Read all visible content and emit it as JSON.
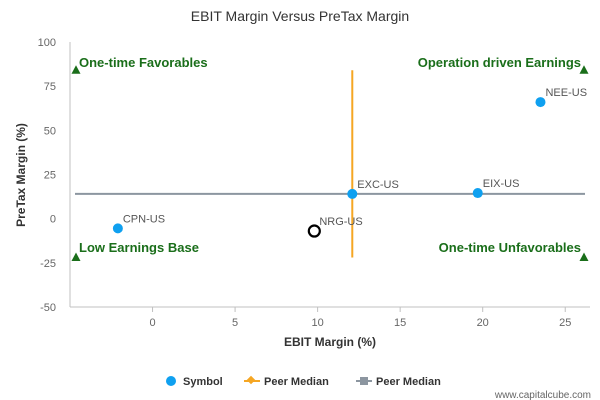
{
  "chart_data": {
    "type": "scatter",
    "title": "EBIT Margin Versus PreTax Margin",
    "xlabel": "EBIT Margin (%)",
    "ylabel": "PreTax Margin (%)",
    "xlim": [
      -5.0,
      26.5
    ],
    "ylim": [
      -50,
      100
    ],
    "x_ticks": [
      0,
      5,
      10,
      15,
      20,
      25
    ],
    "y_ticks": [
      100,
      75,
      50,
      25,
      0,
      -25,
      -50
    ],
    "points": [
      {
        "label": "NEE-US",
        "x": 23.5,
        "y": 66,
        "style": "filled"
      },
      {
        "label": "EXC-US",
        "x": 12.1,
        "y": 14,
        "style": "filled"
      },
      {
        "label": "EIX-US",
        "x": 19.7,
        "y": 14.5,
        "style": "filled"
      },
      {
        "label": "CPN-US",
        "x": -2.1,
        "y": -5.5,
        "style": "filled"
      },
      {
        "label": "NRG-US",
        "x": 9.8,
        "y": -7,
        "style": "hollow"
      }
    ],
    "peer_median_x": 12.1,
    "peer_median_y": 14,
    "median_line_x_range": [
      -22,
      84
    ],
    "quadrant_labels": {
      "top_left": "One-time Favorables",
      "top_right": "Operation driven Earnings",
      "bottom_left": "Low Earnings Base",
      "bottom_right": "One-time Unfavorables"
    },
    "legend": [
      {
        "name": "Symbol",
        "marker": "circle",
        "color": "#0fa0f0"
      },
      {
        "name": "Peer Median",
        "marker": "diamond-line",
        "color": "#f5a623"
      },
      {
        "name": "Peer Median",
        "marker": "square-line",
        "color": "#8c96a0"
      }
    ],
    "grid": false
  },
  "colors": {
    "point": "#0fa0f0",
    "median_vertical": "#f5a623",
    "median_horizontal": "#8c96a0",
    "quadrant_text": "#1a6e1a",
    "triangle": "#1a6e1a"
  },
  "watermark": "www.capitalcube.com"
}
